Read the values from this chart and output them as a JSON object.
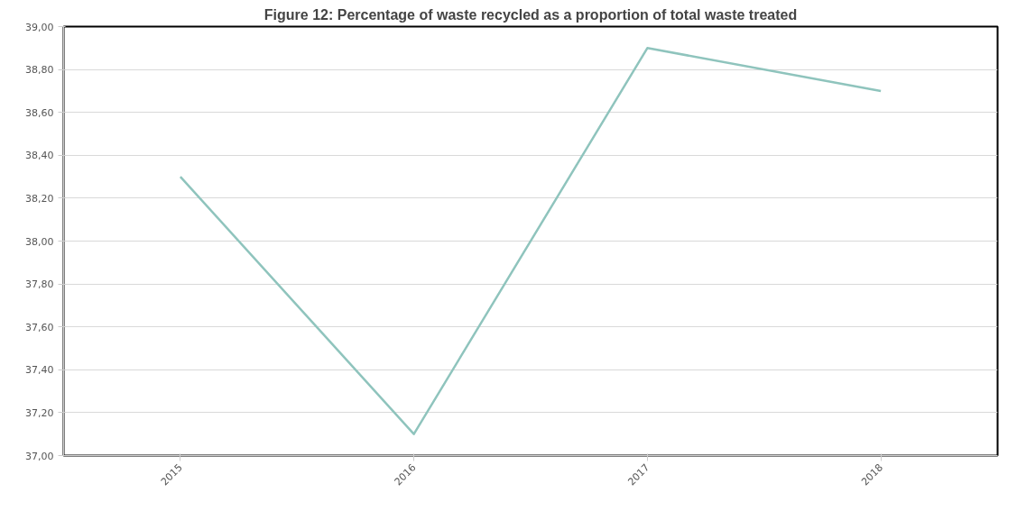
{
  "chart_data": {
    "type": "line",
    "title": "Figure 12: Percentage of waste recycled as a proportion of total waste treated",
    "categories": [
      "2015",
      "2016",
      "2017",
      "2018"
    ],
    "series": [
      {
        "color": "#8fc4bd",
        "values": [
          38.3,
          37.1,
          38.9,
          38.7
        ]
      }
    ],
    "ylim": [
      37.0,
      39.0
    ],
    "yticks": [
      {
        "value": 37.0,
        "label": "37,00"
      },
      {
        "value": 37.2,
        "label": "37,20"
      },
      {
        "value": 37.4,
        "label": "37,40"
      },
      {
        "value": 37.6,
        "label": "37,60"
      },
      {
        "value": 37.8,
        "label": "37,80"
      },
      {
        "value": 38.0,
        "label": "38,00"
      },
      {
        "value": 38.2,
        "label": "38,20"
      },
      {
        "value": 38.4,
        "label": "38,40"
      },
      {
        "value": 38.6,
        "label": "38,60"
      },
      {
        "value": 38.8,
        "label": "38,80"
      },
      {
        "value": 39.0,
        "label": "39,00"
      }
    ],
    "grid": "y",
    "marker": "none",
    "line_style": "solid"
  }
}
